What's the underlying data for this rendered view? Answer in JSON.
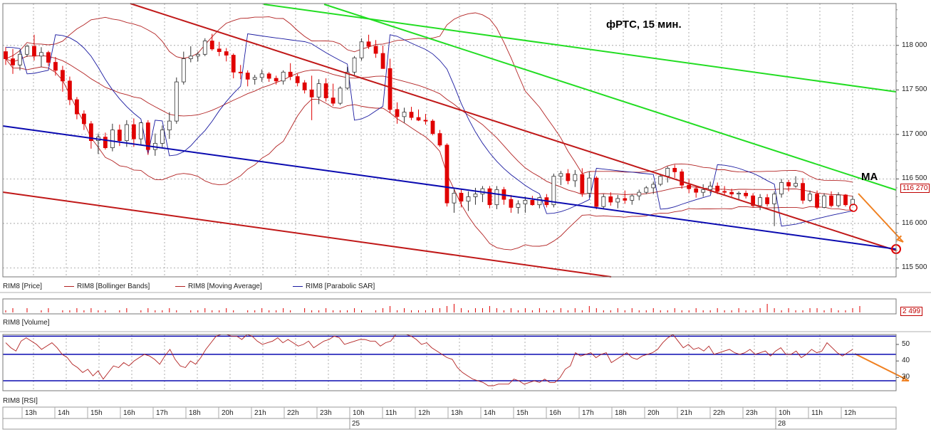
{
  "chart_data": {
    "type": "candlestick",
    "title": "фРТС, 15 мин.",
    "annotation": "MA",
    "last_price_label": "116 270",
    "last_volume_label": "2 499",
    "price_axis": {
      "ylim": [
        115400,
        118470
      ],
      "ticks": [
        115500,
        116000,
        116500,
        117000,
        117500,
        118000
      ],
      "tick_labels": [
        "115 500",
        "116 000",
        "116 500",
        "117 000",
        "117 500",
        "118 000"
      ]
    },
    "rsi_axis": {
      "ylim": [
        22,
        56
      ],
      "ticks": [
        30,
        40,
        50
      ],
      "tick_labels": [
        "30",
        "40",
        "50"
      ],
      "levels": [
        28,
        44,
        55
      ]
    },
    "time_labels": [
      "13h",
      "14h",
      "15h",
      "16h",
      "17h",
      "18h",
      "20h",
      "21h",
      "22h",
      "23h",
      "10h",
      "11h",
      "12h",
      "13h",
      "14h",
      "15h",
      "16h",
      "17h",
      "18h",
      "20h",
      "21h",
      "22h",
      "23h",
      "10h",
      "11h",
      "12h"
    ],
    "date_labels": [
      {
        "label": "25",
        "at_index": 10
      },
      {
        "label": "28",
        "at_index": 23
      }
    ],
    "legend": [
      {
        "name": "RIM8 [Price]",
        "color": "#000000"
      },
      {
        "name": "RIM8 [Bollinger Bands]",
        "color": "#b22222"
      },
      {
        "name": "RIM8 [Moving Average]",
        "color": "#b22222"
      },
      {
        "name": "RIM8 [Parabolic SAR]",
        "color": "#1a1aa0"
      }
    ],
    "pane_names": [
      "RIM8 [Volume]",
      "RIM8 [RSI]"
    ],
    "colors": {
      "up": "#ffffff",
      "down": "#e00000",
      "bb": "#b22222",
      "ma": "#b22222",
      "sar": "#1a1aa0",
      "trend_red": "#c01818",
      "trend_green": "#22dd22",
      "trend_blue": "#0a0ab0",
      "arrow": "#f08020",
      "grid": "#9a9a9a"
    },
    "candles": [
      [
        117930,
        117980,
        117780,
        117850
      ],
      [
        117850,
        117960,
        117680,
        117780
      ],
      [
        117780,
        117950,
        117720,
        117900
      ],
      [
        117900,
        118010,
        117870,
        117990
      ],
      [
        117990,
        118120,
        117830,
        117880
      ],
      [
        117880,
        117980,
        117760,
        117920
      ],
      [
        117920,
        117940,
        117770,
        117810
      ],
      [
        117810,
        117870,
        117660,
        117720
      ],
      [
        117720,
        117770,
        117480,
        117600
      ],
      [
        117600,
        117650,
        117330,
        117390
      ],
      [
        117390,
        117420,
        117170,
        117230
      ],
      [
        117230,
        117270,
        117050,
        117120
      ],
      [
        117120,
        117150,
        116840,
        116930
      ],
      [
        116930,
        117010,
        116780,
        116970
      ],
      [
        116970,
        117020,
        116830,
        116850
      ],
      [
        116850,
        117120,
        116810,
        117050
      ],
      [
        117050,
        117110,
        116870,
        116930
      ],
      [
        116930,
        117160,
        116860,
        117110
      ],
      [
        117110,
        117180,
        116860,
        116950
      ],
      [
        116950,
        117140,
        116880,
        117130
      ],
      [
        117130,
        117160,
        116770,
        116830
      ],
      [
        116830,
        117010,
        116760,
        116900
      ],
      [
        116900,
        117100,
        116850,
        117050
      ],
      [
        117050,
        117250,
        116950,
        117150
      ],
      [
        117150,
        117640,
        117120,
        117590
      ],
      [
        117590,
        117930,
        117560,
        117850
      ],
      [
        117850,
        117990,
        117810,
        117880
      ],
      [
        117880,
        117930,
        117820,
        117900
      ],
      [
        117900,
        118080,
        117880,
        118050
      ],
      [
        118050,
        118130,
        117940,
        117960
      ],
      [
        117960,
        118040,
        117880,
        117930
      ],
      [
        117930,
        117970,
        117820,
        117890
      ],
      [
        117890,
        117910,
        117630,
        117700
      ],
      [
        117700,
        117780,
        117620,
        117690
      ],
      [
        117690,
        117720,
        117540,
        117620
      ],
      [
        117620,
        117670,
        117560,
        117640
      ],
      [
        117640,
        117730,
        117590,
        117680
      ],
      [
        117680,
        117700,
        117590,
        117630
      ],
      [
        117630,
        117660,
        117560,
        117600
      ],
      [
        117600,
        117720,
        117560,
        117700
      ],
      [
        117700,
        117800,
        117610,
        117650
      ],
      [
        117650,
        117680,
        117540,
        117580
      ],
      [
        117580,
        117610,
        117460,
        117500
      ],
      [
        117500,
        117660,
        117160,
        117420
      ],
      [
        117420,
        117620,
        117340,
        117570
      ],
      [
        117570,
        117630,
        117370,
        117410
      ],
      [
        117410,
        117570,
        117320,
        117350
      ],
      [
        117350,
        117540,
        117330,
        117520
      ],
      [
        117520,
        117760,
        117500,
        117700
      ],
      [
        117700,
        117880,
        117650,
        117860
      ],
      [
        117860,
        118080,
        117830,
        118040
      ],
      [
        118040,
        118120,
        117960,
        117990
      ],
      [
        117990,
        118060,
        117860,
        117910
      ],
      [
        117910,
        118000,
        117760,
        117740
      ],
      [
        117740,
        117850,
        117240,
        117280
      ],
      [
        117280,
        117360,
        117120,
        117200
      ],
      [
        117200,
        117300,
        117130,
        117250
      ],
      [
        117250,
        117310,
        117160,
        117190
      ],
      [
        117190,
        117280,
        117150,
        117160
      ],
      [
        117160,
        117230,
        117110,
        117150
      ],
      [
        117150,
        117170,
        116990,
        117010
      ],
      [
        117010,
        117050,
        116860,
        116880
      ],
      [
        116880,
        116900,
        116190,
        116230
      ],
      [
        116230,
        116400,
        116120,
        116340
      ],
      [
        116340,
        116390,
        116180,
        116250
      ],
      [
        116250,
        116360,
        116140,
        116300
      ],
      [
        116300,
        116400,
        116210,
        116330
      ],
      [
        116330,
        116420,
        116240,
        116390
      ],
      [
        116390,
        116420,
        116170,
        116210
      ],
      [
        116210,
        116420,
        116160,
        116380
      ],
      [
        116380,
        116410,
        116210,
        116270
      ],
      [
        116270,
        116320,
        116120,
        116180
      ],
      [
        116180,
        116260,
        116110,
        116220
      ],
      [
        116220,
        116300,
        116120,
        116260
      ],
      [
        116260,
        116310,
        116200,
        116210
      ],
      [
        116210,
        116300,
        116170,
        116290
      ],
      [
        116290,
        116330,
        116180,
        116210
      ],
      [
        116210,
        116560,
        116180,
        116530
      ],
      [
        116530,
        116590,
        116430,
        116560
      ],
      [
        116560,
        116610,
        116440,
        116480
      ],
      [
        116480,
        116600,
        116410,
        116550
      ],
      [
        116550,
        116620,
        116300,
        116340
      ],
      [
        116340,
        116580,
        116290,
        116510
      ],
      [
        116510,
        116530,
        116160,
        116190
      ],
      [
        116190,
        116330,
        116170,
        116300
      ],
      [
        116300,
        116350,
        116200,
        116240
      ],
      [
        116240,
        116320,
        116170,
        116280
      ],
      [
        116280,
        116370,
        116220,
        116260
      ],
      [
        116260,
        116330,
        116210,
        116310
      ],
      [
        116310,
        116380,
        116260,
        116350
      ],
      [
        116350,
        116420,
        116330,
        116400
      ],
      [
        116400,
        116470,
        116330,
        116440
      ],
      [
        116440,
        116550,
        116420,
        116530
      ],
      [
        116530,
        116640,
        116460,
        116620
      ],
      [
        116620,
        116660,
        116510,
        116580
      ],
      [
        116580,
        116610,
        116390,
        116430
      ],
      [
        116430,
        116500,
        116340,
        116390
      ],
      [
        116390,
        116420,
        116290,
        116350
      ],
      [
        116350,
        116440,
        116300,
        116380
      ],
      [
        116380,
        116470,
        116340,
        116420
      ],
      [
        116420,
        116460,
        116330,
        116360
      ],
      [
        116360,
        116420,
        116310,
        116350
      ],
      [
        116350,
        116390,
        116300,
        116330
      ],
      [
        116330,
        116360,
        116260,
        116340
      ],
      [
        116340,
        116370,
        116280,
        116310
      ],
      [
        116310,
        116340,
        116180,
        116200
      ],
      [
        116200,
        116330,
        116150,
        116290
      ],
      [
        116290,
        116330,
        116190,
        116220
      ],
      [
        116220,
        116360,
        115970,
        116330
      ],
      [
        116330,
        116500,
        116290,
        116460
      ],
      [
        116460,
        116490,
        116360,
        116420
      ],
      [
        116420,
        116530,
        116400,
        116450
      ],
      [
        116450,
        116510,
        116220,
        116260
      ],
      [
        116260,
        116370,
        116240,
        116330
      ],
      [
        116330,
        116370,
        116160,
        116180
      ],
      [
        116180,
        116340,
        116170,
        116310
      ],
      [
        116310,
        116360,
        116180,
        116200
      ],
      [
        116200,
        116350,
        116180,
        116320
      ],
      [
        116320,
        116330,
        116190,
        116210
      ],
      [
        116210,
        116310,
        116200,
        116270
      ]
    ],
    "volume_levels": [
      1,
      2,
      0,
      2,
      0,
      1,
      2,
      0,
      1,
      1,
      2,
      1,
      2,
      1,
      1,
      0,
      1,
      2,
      0,
      1,
      2,
      1,
      1,
      2,
      1,
      0,
      1,
      1,
      2,
      1,
      1,
      2,
      1,
      0,
      1,
      1,
      2,
      1,
      1,
      2,
      1,
      0,
      2,
      1,
      1,
      2,
      1,
      1,
      1,
      2,
      1,
      0,
      1,
      2,
      3,
      1,
      2,
      1,
      1,
      1,
      2,
      2,
      3,
      4,
      2,
      1,
      2,
      2,
      3,
      2,
      1,
      2,
      1,
      2,
      1,
      2,
      1,
      1,
      2,
      1,
      2,
      1,
      3,
      2,
      1,
      1,
      2,
      1,
      2,
      1,
      1,
      2,
      1,
      1,
      2,
      1,
      1,
      2,
      1,
      1,
      2,
      1,
      1,
      2,
      1,
      1,
      2,
      4,
      2,
      1,
      2,
      1,
      1,
      2,
      2,
      1,
      2,
      1,
      1,
      2,
      3
    ],
    "rsi_values": [
      51,
      48,
      46,
      52,
      54,
      52,
      50,
      47,
      49,
      51,
      48,
      44,
      42,
      38,
      36,
      33,
      35,
      31,
      34,
      29,
      33,
      37,
      36,
      39,
      37,
      40,
      42,
      44,
      43,
      41,
      38,
      43,
      47,
      41,
      37,
      36,
      40,
      38,
      42,
      47,
      51,
      55,
      56,
      56,
      55,
      55,
      53,
      56,
      55,
      52,
      50,
      51,
      52,
      54,
      51,
      53,
      51,
      49,
      50,
      52,
      48,
      50,
      52,
      53,
      55,
      54,
      50,
      51,
      52,
      53,
      53,
      52,
      52,
      49,
      51,
      52,
      56,
      56,
      56,
      55,
      53,
      50,
      51,
      48,
      46,
      44,
      42,
      41,
      36,
      33,
      31,
      29,
      28,
      27,
      25,
      25,
      26,
      26,
      26,
      29,
      28,
      26,
      27,
      28,
      27,
      29,
      27,
      27,
      30,
      35,
      37,
      45,
      43,
      44,
      45,
      42,
      44,
      45,
      39,
      41,
      43,
      45,
      42,
      41,
      43,
      44,
      45,
      47,
      51,
      54,
      56,
      52,
      48,
      50,
      47,
      48,
      46,
      49,
      44,
      45,
      46,
      47,
      45,
      44,
      45,
      47,
      44,
      45,
      46,
      43,
      46,
      48,
      44,
      44,
      46,
      42,
      44,
      47,
      45,
      46,
      51,
      48,
      45,
      43,
      45,
      47
    ]
  }
}
